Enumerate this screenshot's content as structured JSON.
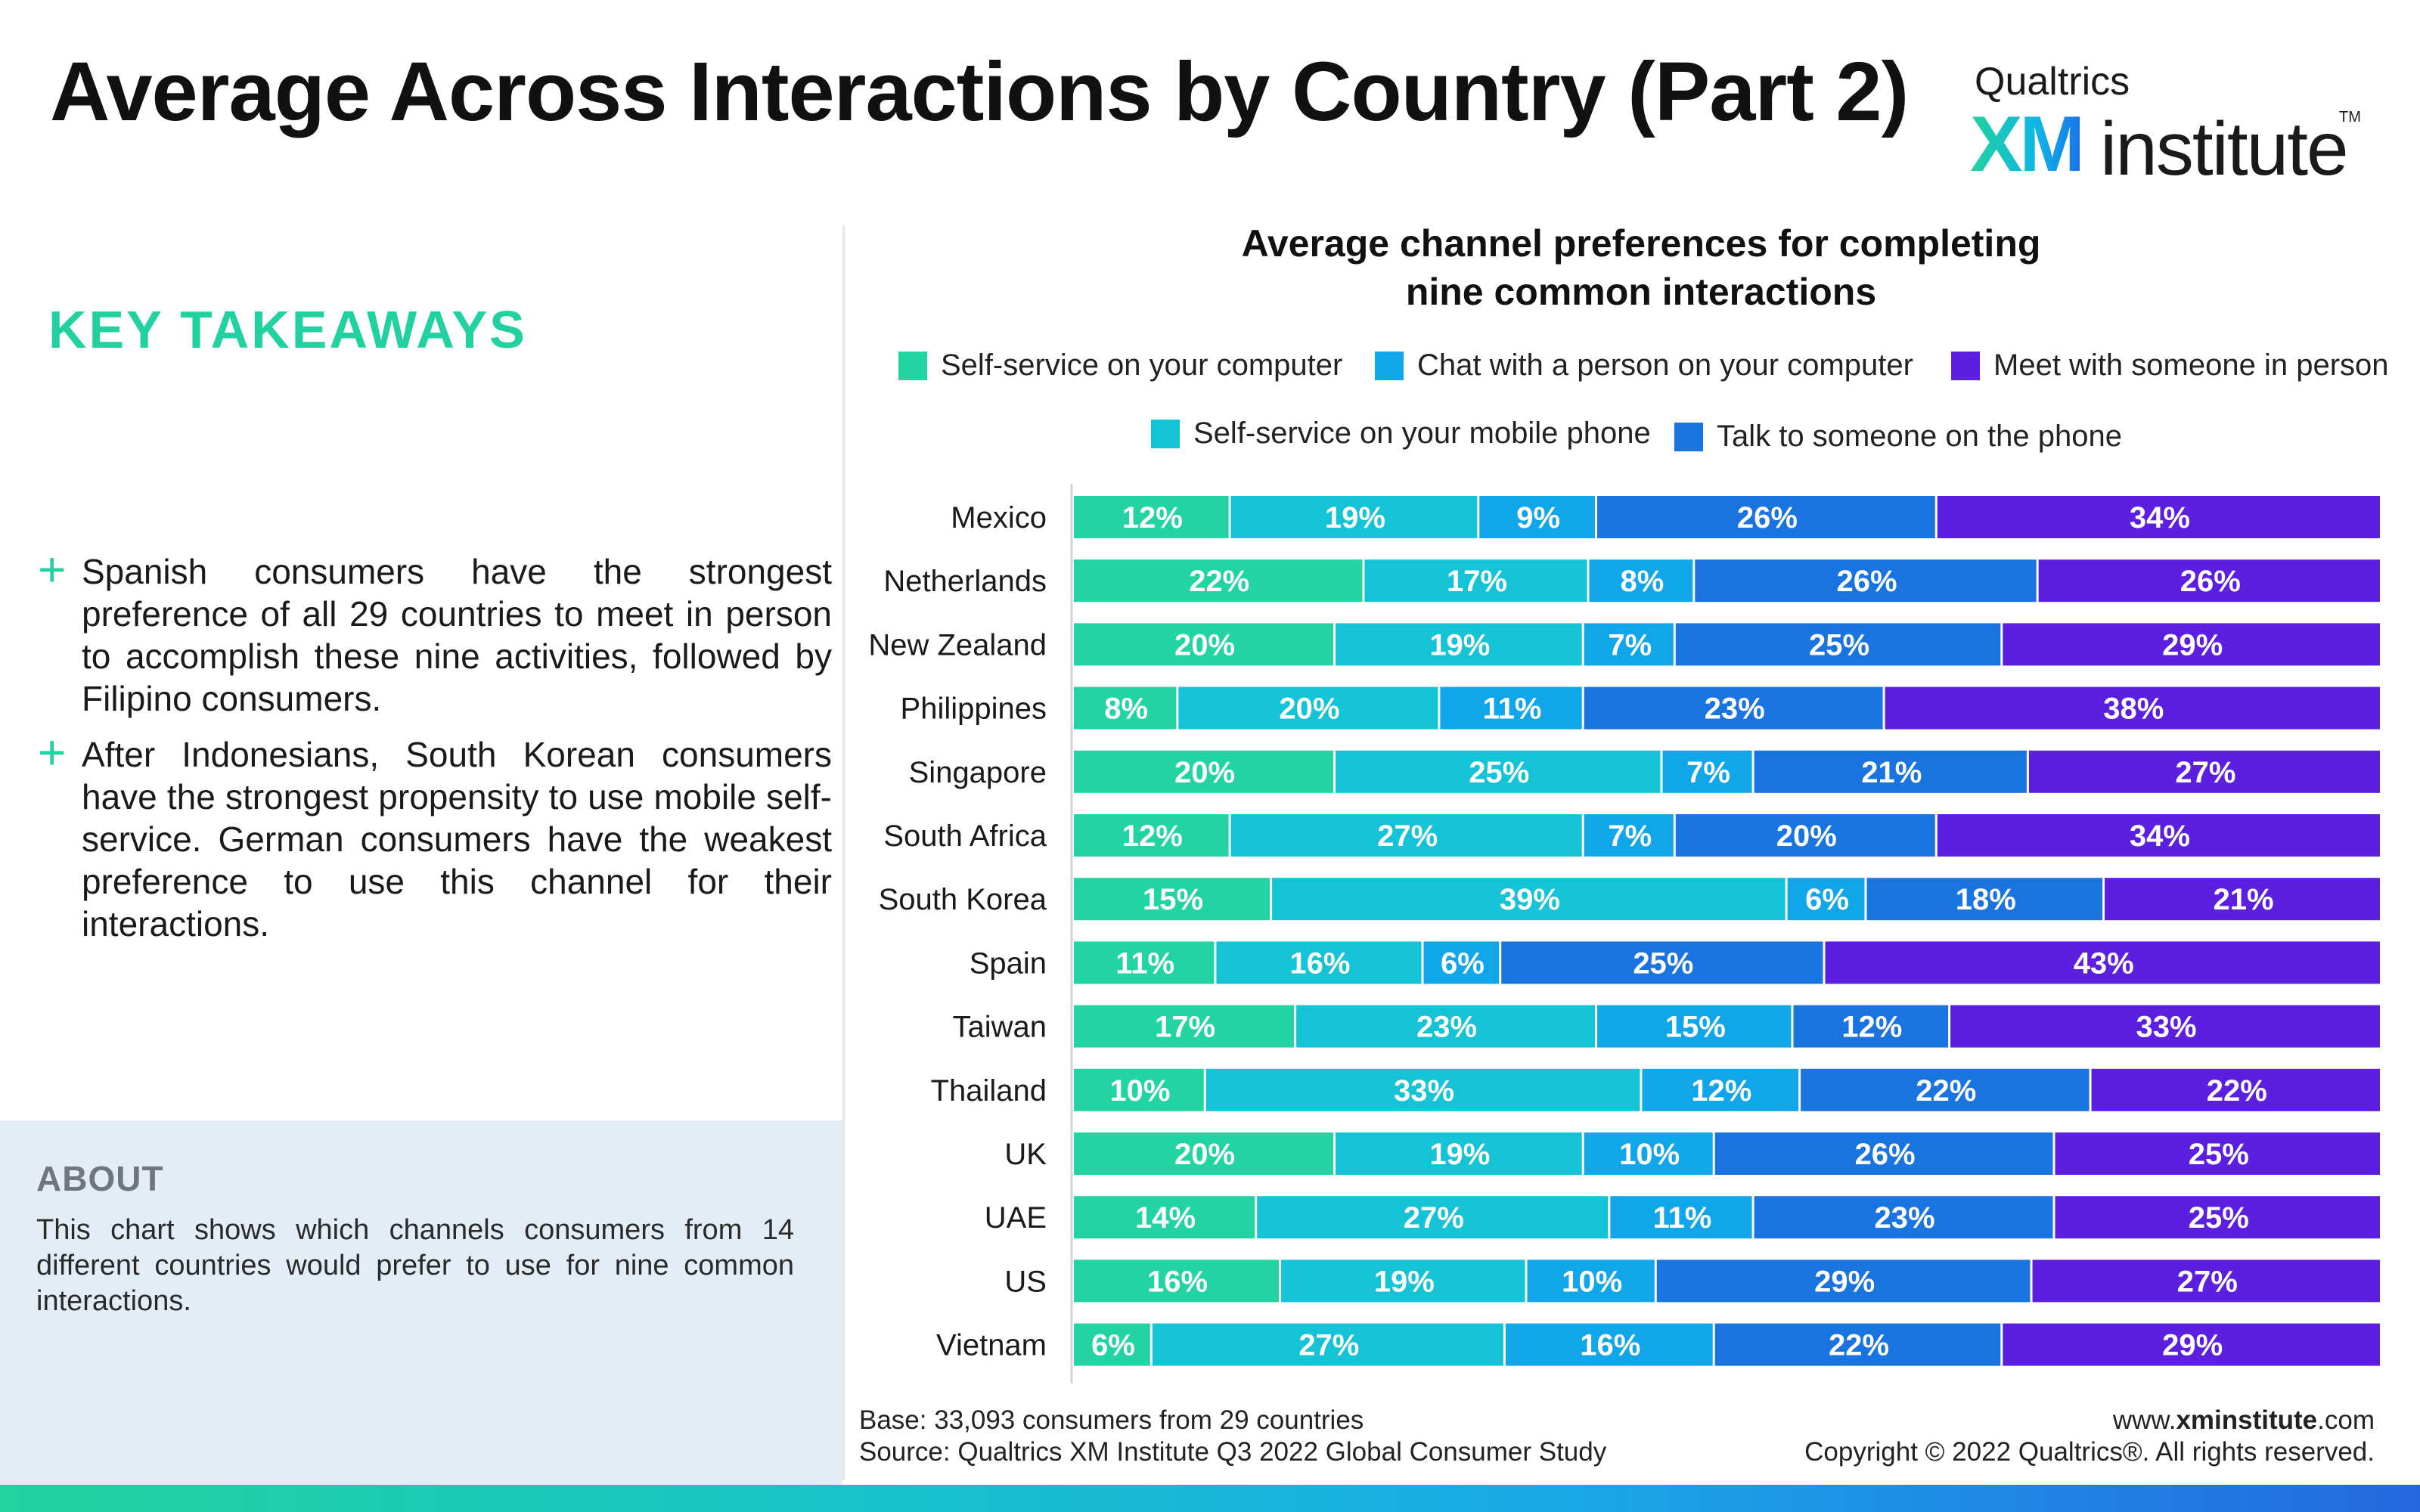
{
  "header": {
    "title": "Average Across Interactions by Country (Part 2)",
    "logo": {
      "brand": "Qualtrics",
      "xm": "XM",
      "institute": "institute",
      "tm": "TM"
    }
  },
  "takeaways": {
    "heading": "KEY TAKEAWAYS",
    "items": [
      "Spanish consumers have the strongest preference of all 29 countries to meet in person to accomplish these nine activities, followed by Filipino consumers.",
      "After Indonesians, South Korean consumers have the strongest propensity to use mobile self-service. German consumers have the weakest preference to use this channel for their interactions."
    ]
  },
  "about": {
    "heading": "ABOUT",
    "text": "This chart shows which channels consumers from 14 different countries would prefer to use for nine common interactions."
  },
  "chart_data": {
    "type": "bar",
    "orientation": "horizontal",
    "stacked": true,
    "normalized": "percent",
    "title_line1": "Average channel preferences for completing",
    "title_line2": "nine common interactions",
    "categories": [
      "Mexico",
      "Netherlands",
      "New Zealand",
      "Philippines",
      "Singapore",
      "South Africa",
      "South Korea",
      "Spain",
      "Taiwan",
      "Thailand",
      "UK",
      "UAE",
      "US",
      "Vietnam"
    ],
    "series": [
      {
        "name": "Self-service on your computer",
        "color": "#22d4a2",
        "values": [
          12,
          22,
          20,
          8,
          20,
          12,
          15,
          11,
          17,
          10,
          20,
          14,
          16,
          6
        ]
      },
      {
        "name": "Self-service on your mobile phone",
        "color": "#14c4d6",
        "values": [
          19,
          17,
          19,
          20,
          25,
          27,
          39,
          16,
          23,
          33,
          19,
          27,
          19,
          27
        ]
      },
      {
        "name": "Chat with a person on your computer",
        "color": "#11a6ea",
        "values": [
          9,
          8,
          7,
          11,
          7,
          7,
          6,
          6,
          15,
          12,
          10,
          11,
          10,
          16
        ]
      },
      {
        "name": "Talk to someone on the phone",
        "color": "#1a74df",
        "values": [
          26,
          26,
          25,
          23,
          21,
          20,
          18,
          25,
          12,
          22,
          26,
          23,
          29,
          22
        ]
      },
      {
        "name": "Meet with someone in person",
        "color": "#5c1fe0",
        "values": [
          34,
          26,
          29,
          38,
          27,
          34,
          21,
          43,
          33,
          22,
          25,
          25,
          27,
          29
        ]
      }
    ],
    "value_suffix": "%",
    "legend_position": "top",
    "grid": false
  },
  "footer": {
    "base": "Base: 33,093 consumers from 29 countries",
    "source": "Source: Qualtrics XM Institute Q3 2022 Global Consumer Study",
    "url_prefix": "www.",
    "url_bold": "xminstitute",
    "url_suffix": ".com",
    "copyright": "Copyright © 2022 Qualtrics®. All rights reserved."
  }
}
